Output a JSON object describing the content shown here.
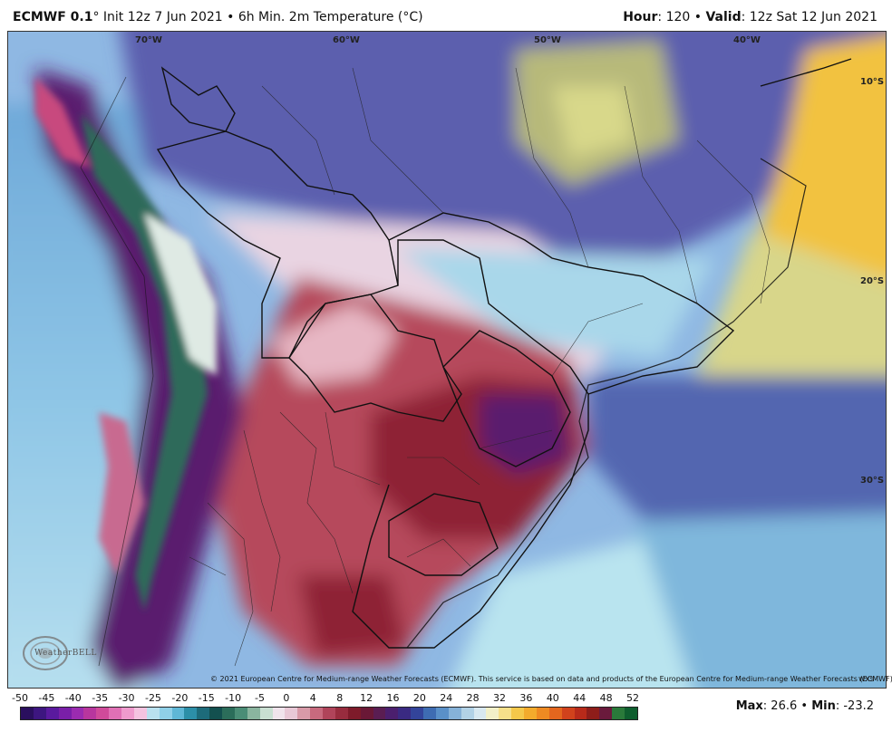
{
  "header": {
    "model": "ECMWF 0.1",
    "init": "° Init 12z 7 Jun 2021 • 6h Min. 2m Temperature (°C)",
    "hour_label": "Hour",
    "hour_value": ": 120 • ",
    "valid_label": "Valid",
    "valid_value": ": 12z Sat 12 Jun 2021"
  },
  "map": {
    "region": "South America",
    "lon_labels": [
      "70°W",
      "60°W",
      "50°W",
      "40°W"
    ],
    "lat_labels": [
      "10°S",
      "20°S",
      "30°S"
    ],
    "copyright": "© 2021 European Centre for Medium-range Weather Forecasts (ECMWF). This service is based on data and products of the European Centre for Medium-range Weather Forecasts (ECMWF).",
    "logo": "WeatherBELL",
    "corner_mark": "wxs"
  },
  "colorbar": {
    "ticks": [
      "-50",
      "-45",
      "-40",
      "-35",
      "-30",
      "-25",
      "-20",
      "-15",
      "-10",
      "-5",
      "0",
      "4",
      "8",
      "12",
      "16",
      "20",
      "24",
      "28",
      "32",
      "36",
      "40",
      "44",
      "48",
      "52"
    ],
    "colors": [
      "#2a0f5e",
      "#3d1680",
      "#5a1a9e",
      "#7a1fa8",
      "#9b2bb0",
      "#b8369e",
      "#d04a9a",
      "#e070b5",
      "#ef9acd",
      "#f4c3e0",
      "#b9e1ef",
      "#8fd0e8",
      "#5fb7d6",
      "#2c8fa8",
      "#1d6b7a",
      "#13504f",
      "#2b6d5a",
      "#4a8d76",
      "#8ab59f",
      "#c9dfd2",
      "#f0e4ec",
      "#e8c8d6",
      "#d89aa8",
      "#c86a7e",
      "#b0445a",
      "#982c3e",
      "#7e1b2a",
      "#6a1836",
      "#5a1d52",
      "#4b1f6e",
      "#3a2a82",
      "#33449a",
      "#3e6cb2",
      "#5a90c8",
      "#86b2d8",
      "#b2d2e6",
      "#d8e8f0",
      "#f2f0c8",
      "#f6e08a",
      "#f5c84a",
      "#f3ab2c",
      "#ee8a22",
      "#e4661e",
      "#d1421c",
      "#b82a1a",
      "#8e1d1a",
      "#6a1a3c",
      "#2a7a3a",
      "#0e5e2e"
    ]
  },
  "stats": {
    "max_label": "Max",
    "max_value": ": 26.6 • ",
    "min_label": "Min",
    "min_value": ": -23.2"
  }
}
